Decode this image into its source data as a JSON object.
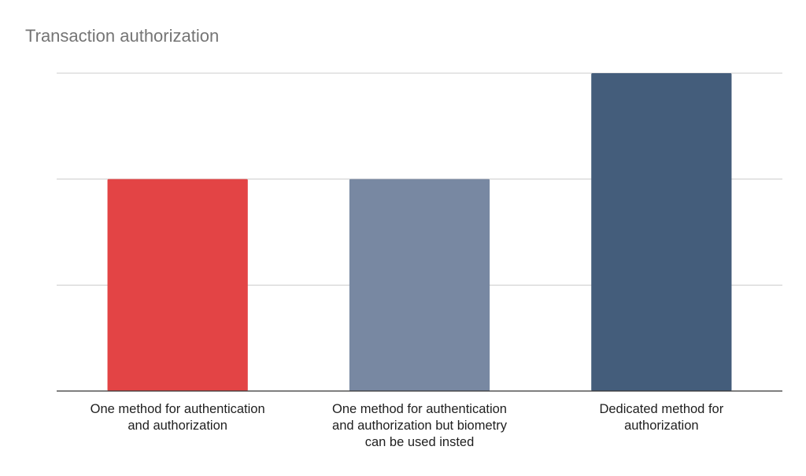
{
  "chart_data": {
    "type": "bar",
    "title": "Transaction authorization",
    "xlabel": "",
    "ylabel": "",
    "categories": [
      "One method for authentication\nand authorization",
      "One method for authentication\nand authorization but biometry\ncan be used insted",
      "Dedicated method for\nauthorization"
    ],
    "values": [
      2,
      2,
      3
    ],
    "colors": [
      "#e34445",
      "#7888a2",
      "#445d7b"
    ],
    "ylim": [
      0,
      3
    ],
    "grid": true,
    "legend": "none"
  }
}
